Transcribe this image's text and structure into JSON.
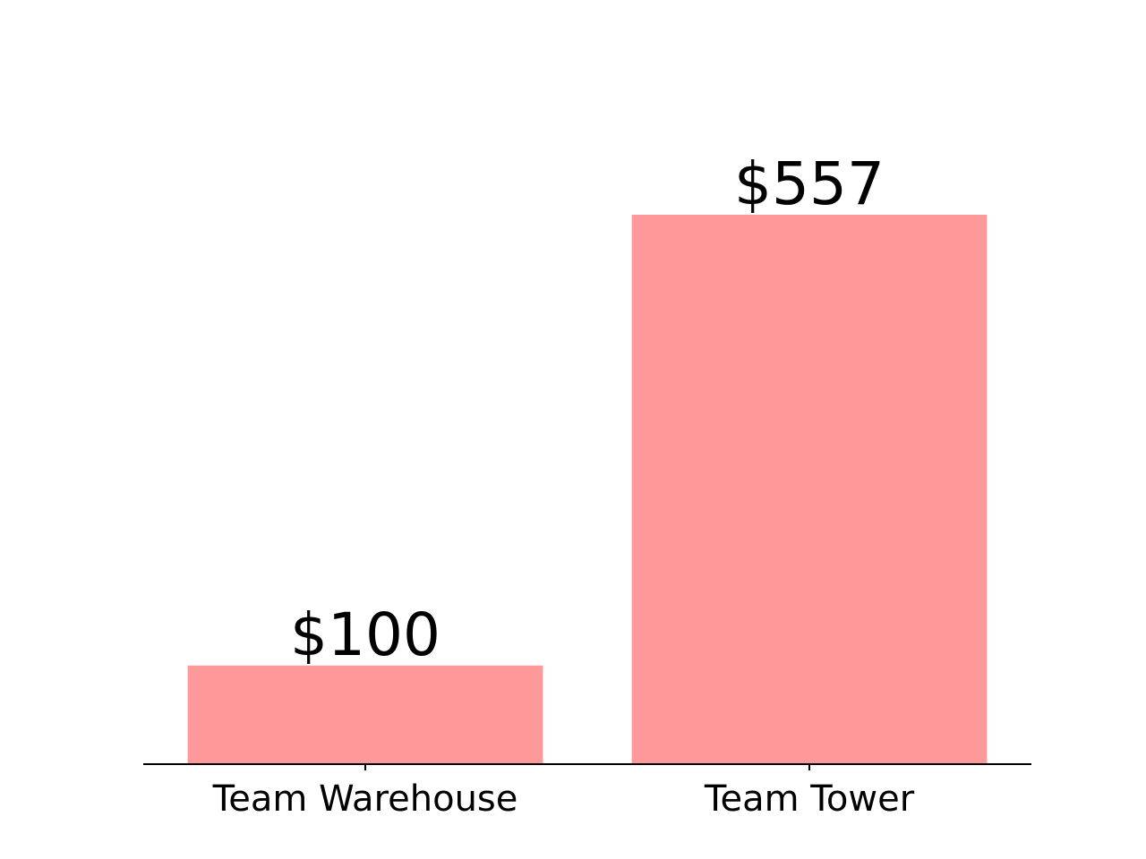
{
  "chart_data": {
    "type": "bar",
    "categories": [
      "Team Warehouse",
      "Team Tower"
    ],
    "values": [
      100,
      557
    ],
    "value_labels": [
      "$100",
      "$557"
    ],
    "title": "",
    "xlabel": "",
    "ylabel": "",
    "ylim": [
      0,
      650
    ],
    "grid": false,
    "legend": "none",
    "bar_color": "#ff9999",
    "axis_color": "#000000",
    "y_axis_visible": false
  }
}
